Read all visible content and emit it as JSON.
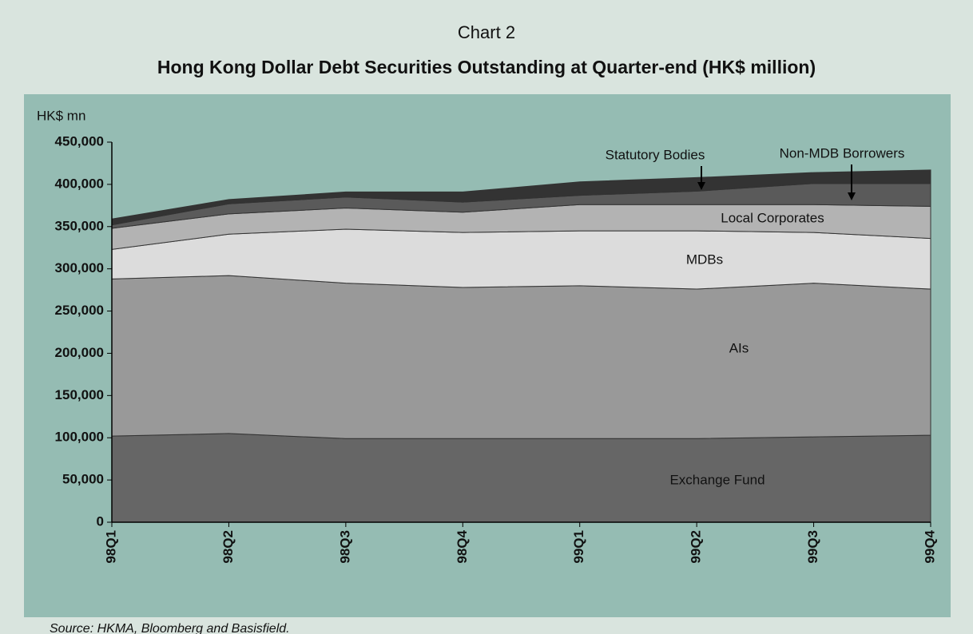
{
  "chart_data": {
    "type": "stacked_area",
    "label": "Chart 2",
    "title": "Hong Kong Dollar Debt Securities Outstanding at Quarter-end (HK$ million)",
    "y_label": "HK$ mn",
    "source": "Source: HKMA, Bloomberg and Basisfield.",
    "categories": [
      "98Q1",
      "98Q2",
      "98Q3",
      "98Q4",
      "99Q1",
      "99Q2",
      "99Q3",
      "99Q4"
    ],
    "series": [
      {
        "name": "Exchange Fund",
        "color": "#666666",
        "values": [
          102000,
          105000,
          99000,
          99000,
          99000,
          99000,
          101000,
          103000
        ]
      },
      {
        "name": "AIs",
        "color": "#999999",
        "values": [
          186000,
          187000,
          184000,
          179000,
          181000,
          177000,
          182000,
          173000
        ]
      },
      {
        "name": "MDBs",
        "color": "#dcdcdc",
        "values": [
          35000,
          49000,
          64000,
          65000,
          65000,
          69000,
          60000,
          60000
        ]
      },
      {
        "name": "Local Corporates",
        "color": "#b3b3b3",
        "values": [
          25000,
          24000,
          25000,
          24000,
          31000,
          31000,
          33000,
          38000
        ]
      },
      {
        "name": "Non-MDB Borrowers",
        "color": "#5a5a5a",
        "values": [
          4000,
          12000,
          13000,
          12000,
          11000,
          16000,
          25000,
          27000
        ]
      },
      {
        "name": "Statutory Bodies",
        "color": "#333333",
        "values": [
          7000,
          5000,
          6000,
          12000,
          16000,
          16000,
          13000,
          16000
        ]
      }
    ],
    "ylim": [
      0,
      450000
    ],
    "yticks": [
      0,
      {
        "value": 50000,
        "label": "50,000"
      },
      {
        "value": 100000,
        "label": "100,000"
      },
      {
        "value": 150000,
        "label": "150,000"
      },
      {
        "value": 200000,
        "label": "200,000"
      },
      {
        "value": 250000,
        "label": "250,000"
      },
      {
        "value": 300000,
        "label": "300,000"
      },
      {
        "value": 350000,
        "label": "350,000"
      },
      {
        "value": 400000,
        "label": "400,000"
      },
      {
        "value": 450000,
        "label": "450,000"
      }
    ]
  }
}
